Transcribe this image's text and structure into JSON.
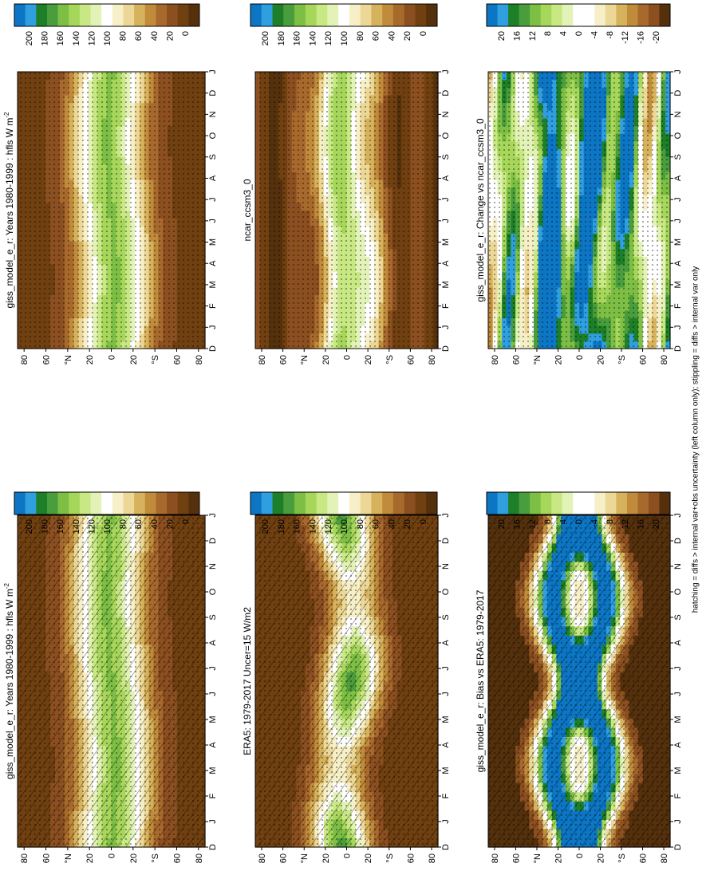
{
  "figure_note": "hatching = diffs > internal var+obs uncertainty (left column only); stippling = diffs > internal var only",
  "colors": {
    "full_field": [
      "#0c76c4",
      "#2f9fe0",
      "#1d7f28",
      "#4a9d3c",
      "#7cbf44",
      "#a6d65a",
      "#c8e884",
      "#e3f3b8",
      "#ffffff",
      "#f6efc7",
      "#ecd796",
      "#d7b25c",
      "#c08b3b",
      "#a8692c",
      "#8c4f20",
      "#704010",
      "#54300c"
    ],
    "difference": [
      "#0c76c4",
      "#2f9fe0",
      "#1d7f28",
      "#4a9d3c",
      "#7cbf44",
      "#a6d65a",
      "#c8e884",
      "#e3f3b8",
      "#ffffff",
      "#ffffff",
      "#f6efc7",
      "#ecd796",
      "#d7b25c",
      "#c08b3b",
      "#a8692c",
      "#8c4f20",
      "#54300c"
    ]
  },
  "chart_data": [
    {
      "id": "p1",
      "type": "heatmap",
      "title": "giss_model_e_r: Years 1980-1999 : hfls W m",
      "title_sup": "-2",
      "variable": "hfls",
      "units": "W m-2",
      "period": "1980-1999",
      "x_months": [
        "D",
        "J",
        "F",
        "M",
        "A",
        "M",
        "J",
        "J",
        "A",
        "S",
        "O",
        "N",
        "D",
        "J"
      ],
      "y_ticks": [
        "80",
        "60",
        "°N",
        "20",
        "0",
        "20",
        "°S",
        "60",
        "80"
      ],
      "colorbar": [
        "200",
        "180",
        "160",
        "140",
        "120",
        "100",
        "80",
        "60",
        "40",
        "20",
        "0"
      ],
      "overlay": "hatching+stippling"
    },
    {
      "id": "p2",
      "type": "heatmap",
      "title": "ERA5: 1979-2017 Uncer=15 W/m2",
      "title_sup": "",
      "period": "1979-2017",
      "uncertainty_wm2": 15,
      "x_months": [
        "D",
        "J",
        "F",
        "M",
        "A",
        "M",
        "J",
        "J",
        "A",
        "S",
        "O",
        "N",
        "D",
        "J"
      ],
      "y_ticks": [
        "80",
        "60",
        "°N",
        "20",
        "0",
        "20",
        "°S",
        "60",
        "80"
      ],
      "colorbar": [
        "200",
        "180",
        "160",
        "140",
        "120",
        "100",
        "80",
        "60",
        "40",
        "20",
        "0"
      ],
      "overlay": "hatching+stippling"
    },
    {
      "id": "p3",
      "type": "heatmap",
      "title": "giss_model_e_r: Bias vs ERA5: 1979-2017",
      "title_sup": "",
      "x_months": [
        "D",
        "J",
        "F",
        "M",
        "A",
        "M",
        "J",
        "J",
        "A",
        "S",
        "O",
        "N",
        "D",
        "J"
      ],
      "y_ticks": [
        "80",
        "60",
        "°N",
        "20",
        "0",
        "20",
        "°S",
        "60",
        "80"
      ],
      "colorbar": [
        "20",
        "16",
        "12",
        "8",
        "4",
        "0",
        "-4",
        "-8",
        "-12",
        "-16",
        "-20"
      ],
      "overlay": "hatching+stippling"
    },
    {
      "id": "p4",
      "type": "heatmap",
      "title": "giss_model_e_r: Years 1980-1999 : hfls W m",
      "title_sup": "-2",
      "x_months": [
        "D",
        "J",
        "F",
        "M",
        "A",
        "M",
        "J",
        "J",
        "A",
        "S",
        "O",
        "N",
        "D",
        "J"
      ],
      "y_ticks": [
        "80",
        "60",
        "°N",
        "20",
        "0",
        "20",
        "°S",
        "60",
        "80"
      ],
      "colorbar": [
        "200",
        "180",
        "160",
        "140",
        "120",
        "100",
        "80",
        "60",
        "40",
        "20",
        "0"
      ],
      "overlay": "stippling"
    },
    {
      "id": "p5",
      "type": "heatmap",
      "title": "ncar_ccsm3_0",
      "title_sup": "",
      "x_months": [
        "D",
        "J",
        "F",
        "M",
        "A",
        "M",
        "J",
        "J",
        "A",
        "S",
        "O",
        "N",
        "D",
        "J"
      ],
      "y_ticks": [
        "80",
        "60",
        "°N",
        "20",
        "0",
        "20",
        "°S",
        "60",
        "80"
      ],
      "colorbar": [
        "200",
        "180",
        "160",
        "140",
        "120",
        "100",
        "80",
        "60",
        "40",
        "20",
        "0"
      ],
      "overlay": "stippling"
    },
    {
      "id": "p6",
      "type": "heatmap",
      "title": "giss_model_e_r: Change vs ncar_ccsm3_0",
      "title_sup": "",
      "x_months": [
        "D",
        "J",
        "F",
        "M",
        "A",
        "M",
        "J",
        "J",
        "A",
        "S",
        "O",
        "N",
        "D",
        "J"
      ],
      "y_ticks": [
        "80",
        "60",
        "°N",
        "20",
        "0",
        "20",
        "°S",
        "60",
        "80"
      ],
      "colorbar": [
        "20",
        "16",
        "12",
        "8",
        "4",
        "0",
        "-4",
        "-8",
        "-12",
        "-16",
        "-20"
      ],
      "overlay": "stippling"
    }
  ]
}
